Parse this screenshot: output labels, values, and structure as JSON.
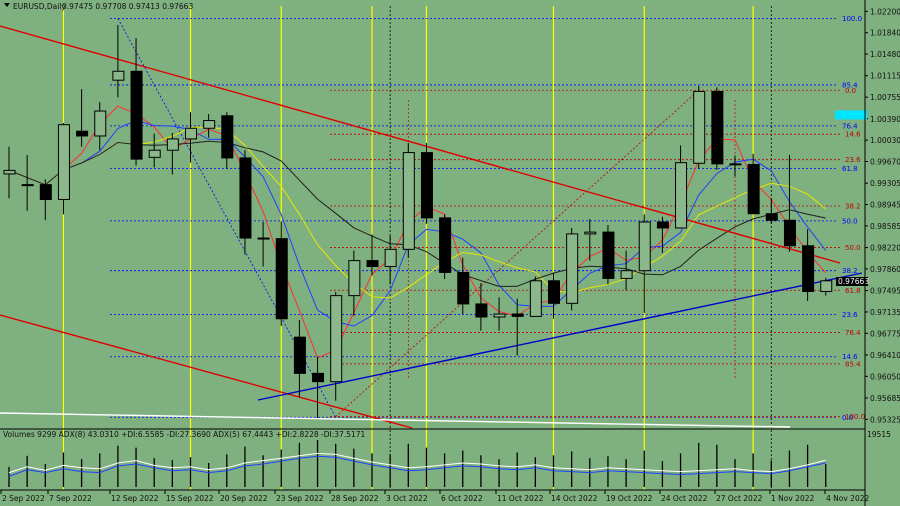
{
  "header": {
    "symbol": "EURUSD,Daily",
    "ohlc": "0.97475 0.97708 0.97413 0.97663"
  },
  "indicator_header": "Volumes 9299  ADX(8) 43.0310 +DI:6.5585 -DI:27.3690  ADX(5) 67.4443 +DI:2.8228 -DI:37.5171",
  "volume_scale_label": "19515",
  "current_price_label": "0.97663",
  "colors": {
    "background": "#7fb07f",
    "bull_body": "#8ab88a",
    "bear_body": "#000000",
    "trend_red": "#e00000",
    "trend_blue": "#0000cc",
    "ma_yellow": "#e8e800",
    "ma_red": "#ff3030",
    "ma_blue": "#2040ff",
    "ma_black": "#202020",
    "fib_blue": "#0000ff",
    "fib_red": "#c00000",
    "vline_yellow": "#ffff00",
    "highlight_cyan": "#00e5ff"
  },
  "chart_data": {
    "type": "candlestick",
    "x_tick_labels": [
      "2 Sep 2022",
      "7 Sep 2022",
      "12 Sep 2022",
      "15 Sep 2022",
      "20 Sep 2022",
      "23 Sep 2022",
      "28 Sep 2022",
      "3 Oct 2022",
      "6 Oct 2022",
      "11 Oct 2022",
      "14 Oct 2022",
      "19 Oct 2022",
      "24 Oct 2022",
      "27 Oct 2022",
      "1 Nov 2022",
      "4 Nov 2022"
    ],
    "y_tick_labels": [
      "1.02200",
      "1.01840",
      "1.01480",
      "1.01115",
      "1.00755",
      "1.00390",
      "1.00030",
      "0.99670",
      "0.99305",
      "0.98945",
      "0.98585",
      "0.98220",
      "0.97860",
      "0.97495",
      "0.97135",
      "0.96775",
      "0.96410",
      "0.96050",
      "0.95685",
      "0.95325"
    ],
    "ylim": [
      0.9523,
      1.0229
    ],
    "candles": [
      {
        "o": 0.9946,
        "h": 0.9992,
        "l": 0.9905,
        "c": 0.9952
      },
      {
        "o": 0.9928,
        "h": 0.9978,
        "l": 0.9884,
        "c": 0.9928
      },
      {
        "o": 0.9928,
        "h": 0.9937,
        "l": 0.9868,
        "c": 0.9903
      },
      {
        "o": 0.9903,
        "h": 1.0032,
        "l": 0.9878,
        "c": 1.0029
      },
      {
        "o": 1.0018,
        "h": 1.0089,
        "l": 0.9992,
        "c": 1.001
      },
      {
        "o": 1.001,
        "h": 1.0067,
        "l": 0.9986,
        "c": 1.0052
      },
      {
        "o": 1.0104,
        "h": 1.0197,
        "l": 1.0075,
        "c": 1.0119
      },
      {
        "o": 1.0119,
        "h": 1.0175,
        "l": 0.996,
        "c": 0.9971
      },
      {
        "o": 0.9974,
        "h": 1.0014,
        "l": 0.9957,
        "c": 0.9986
      },
      {
        "o": 0.9986,
        "h": 1.0015,
        "l": 0.9945,
        "c": 1.0005
      },
      {
        "o": 1.0005,
        "h": 1.005,
        "l": 0.9965,
        "c": 1.0023
      },
      {
        "o": 1.0023,
        "h": 1.0047,
        "l": 1.0007,
        "c": 1.0036
      },
      {
        "o": 1.0044,
        "h": 1.005,
        "l": 0.9955,
        "c": 0.9973
      },
      {
        "o": 0.9973,
        "h": 0.9986,
        "l": 0.981,
        "c": 0.9838
      },
      {
        "o": 0.9838,
        "h": 0.9865,
        "l": 0.979,
        "c": 0.9837
      },
      {
        "o": 0.9837,
        "h": 0.9866,
        "l": 0.969,
        "c": 0.9702
      },
      {
        "o": 0.9671,
        "h": 0.97,
        "l": 0.957,
        "c": 0.961
      },
      {
        "o": 0.961,
        "h": 0.9638,
        "l": 0.9535,
        "c": 0.9596
      },
      {
        "o": 0.9596,
        "h": 0.9747,
        "l": 0.9564,
        "c": 0.9741
      },
      {
        "o": 0.9741,
        "h": 0.9817,
        "l": 0.9707,
        "c": 0.98
      },
      {
        "o": 0.98,
        "h": 0.9844,
        "l": 0.9775,
        "c": 0.979
      },
      {
        "o": 0.979,
        "h": 0.9842,
        "l": 0.976,
        "c": 0.9819
      },
      {
        "o": 0.9819,
        "h": 0.9998,
        "l": 0.9805,
        "c": 0.9982
      },
      {
        "o": 0.9982,
        "h": 0.9998,
        "l": 0.9862,
        "c": 0.9872
      },
      {
        "o": 0.9872,
        "h": 0.9878,
        "l": 0.9769,
        "c": 0.978
      },
      {
        "o": 0.978,
        "h": 0.9805,
        "l": 0.971,
        "c": 0.9727
      },
      {
        "o": 0.9727,
        "h": 0.9762,
        "l": 0.9682,
        "c": 0.9705
      },
      {
        "o": 0.9705,
        "h": 0.9738,
        "l": 0.9682,
        "c": 0.971
      },
      {
        "o": 0.971,
        "h": 0.9736,
        "l": 0.964,
        "c": 0.9706
      },
      {
        "o": 0.9706,
        "h": 0.9773,
        "l": 0.9705,
        "c": 0.9766
      },
      {
        "o": 0.9766,
        "h": 0.978,
        "l": 0.9702,
        "c": 0.9728
      },
      {
        "o": 0.9728,
        "h": 0.9855,
        "l": 0.9716,
        "c": 0.9845
      },
      {
        "o": 0.9845,
        "h": 0.987,
        "l": 0.98,
        "c": 0.9848
      },
      {
        "o": 0.9848,
        "h": 0.986,
        "l": 0.976,
        "c": 0.977
      },
      {
        "o": 0.977,
        "h": 0.9817,
        "l": 0.975,
        "c": 0.9783
      },
      {
        "o": 0.9783,
        "h": 0.9878,
        "l": 0.9712,
        "c": 0.9865
      },
      {
        "o": 0.9865,
        "h": 0.9874,
        "l": 0.9813,
        "c": 0.9855
      },
      {
        "o": 0.9855,
        "h": 0.9994,
        "l": 0.9855,
        "c": 0.9965
      },
      {
        "o": 0.9964,
        "h": 1.0094,
        "l": 0.9955,
        "c": 1.0085
      },
      {
        "o": 1.0085,
        "h": 1.0092,
        "l": 0.9953,
        "c": 0.9963
      },
      {
        "o": 0.9963,
        "h": 0.9977,
        "l": 0.9942,
        "c": 0.9962
      },
      {
        "o": 0.9962,
        "h": 0.998,
        "l": 0.988,
        "c": 0.9879
      },
      {
        "o": 0.9879,
        "h": 0.9905,
        "l": 0.9862,
        "c": 0.9868
      },
      {
        "o": 0.9868,
        "h": 0.9978,
        "l": 0.9815,
        "c": 0.9825
      },
      {
        "o": 0.9825,
        "h": 0.9853,
        "l": 0.9732,
        "c": 0.9748
      },
      {
        "o": 0.9748,
        "h": 0.9771,
        "l": 0.9741,
        "c": 0.9766
      }
    ],
    "fib_blue": [
      {
        "label": "100.0",
        "y": 1.0208
      },
      {
        "label": "85.4",
        "y": 1.0096
      },
      {
        "label": "76.4",
        "y": 1.0027
      },
      {
        "label": "61.8",
        "y": 0.9955
      },
      {
        "label": "50.0",
        "y": 0.9867
      },
      {
        "label": "38.2",
        "y": 0.9783
      },
      {
        "label": "23.6",
        "y": 0.9709
      },
      {
        "label": "14.6",
        "y": 0.9638
      },
      {
        "label": "0.0",
        "y": 0.9536
      }
    ],
    "fib_red": [
      {
        "label": "0.0",
        "y": 1.0087
      },
      {
        "label": "14.6",
        "y": 1.0013
      },
      {
        "label": "23.6",
        "y": 0.997
      },
      {
        "label": "38.2",
        "y": 0.9892
      },
      {
        "label": "50.0",
        "y": 0.9822
      },
      {
        "label": "61.8",
        "y": 0.975
      },
      {
        "label": "76.4",
        "y": 0.9679
      },
      {
        "label": "85.4",
        "y": 0.9626
      },
      {
        "label": "100.0",
        "y": 0.9537
      }
    ],
    "volumes": [
      0.42,
      0.65,
      0.48,
      0.72,
      0.58,
      0.7,
      0.86,
      0.82,
      0.6,
      0.56,
      0.62,
      0.5,
      0.68,
      0.84,
      0.66,
      0.78,
      0.92,
      0.98,
      0.9,
      0.8,
      0.7,
      0.68,
      0.9,
      0.82,
      0.7,
      0.76,
      0.66,
      0.58,
      0.72,
      0.62,
      0.66,
      0.74,
      0.6,
      0.64,
      0.58,
      0.76,
      0.54,
      0.7,
      0.92,
      0.88,
      0.58,
      0.7,
      0.55,
      0.76,
      0.88,
      0.48
    ],
    "adx_line": [
      0.3,
      0.42,
      0.35,
      0.45,
      0.4,
      0.38,
      0.5,
      0.55,
      0.45,
      0.4,
      0.42,
      0.36,
      0.4,
      0.5,
      0.55,
      0.6,
      0.65,
      0.7,
      0.68,
      0.6,
      0.52,
      0.46,
      0.4,
      0.42,
      0.46,
      0.5,
      0.48,
      0.44,
      0.42,
      0.46,
      0.4,
      0.38,
      0.36,
      0.4,
      0.38,
      0.36,
      0.34,
      0.32,
      0.34,
      0.36,
      0.38,
      0.34,
      0.32,
      0.38,
      0.46,
      0.56
    ],
    "adx_line2": [
      0.22,
      0.36,
      0.3,
      0.38,
      0.32,
      0.3,
      0.44,
      0.48,
      0.4,
      0.34,
      0.36,
      0.3,
      0.34,
      0.44,
      0.48,
      0.54,
      0.6,
      0.64,
      0.62,
      0.54,
      0.46,
      0.4,
      0.34,
      0.36,
      0.4,
      0.44,
      0.42,
      0.38,
      0.36,
      0.4,
      0.34,
      0.32,
      0.3,
      0.34,
      0.32,
      0.3,
      0.28,
      0.26,
      0.28,
      0.3,
      0.32,
      0.3,
      0.28,
      0.34,
      0.42,
      0.5
    ]
  }
}
